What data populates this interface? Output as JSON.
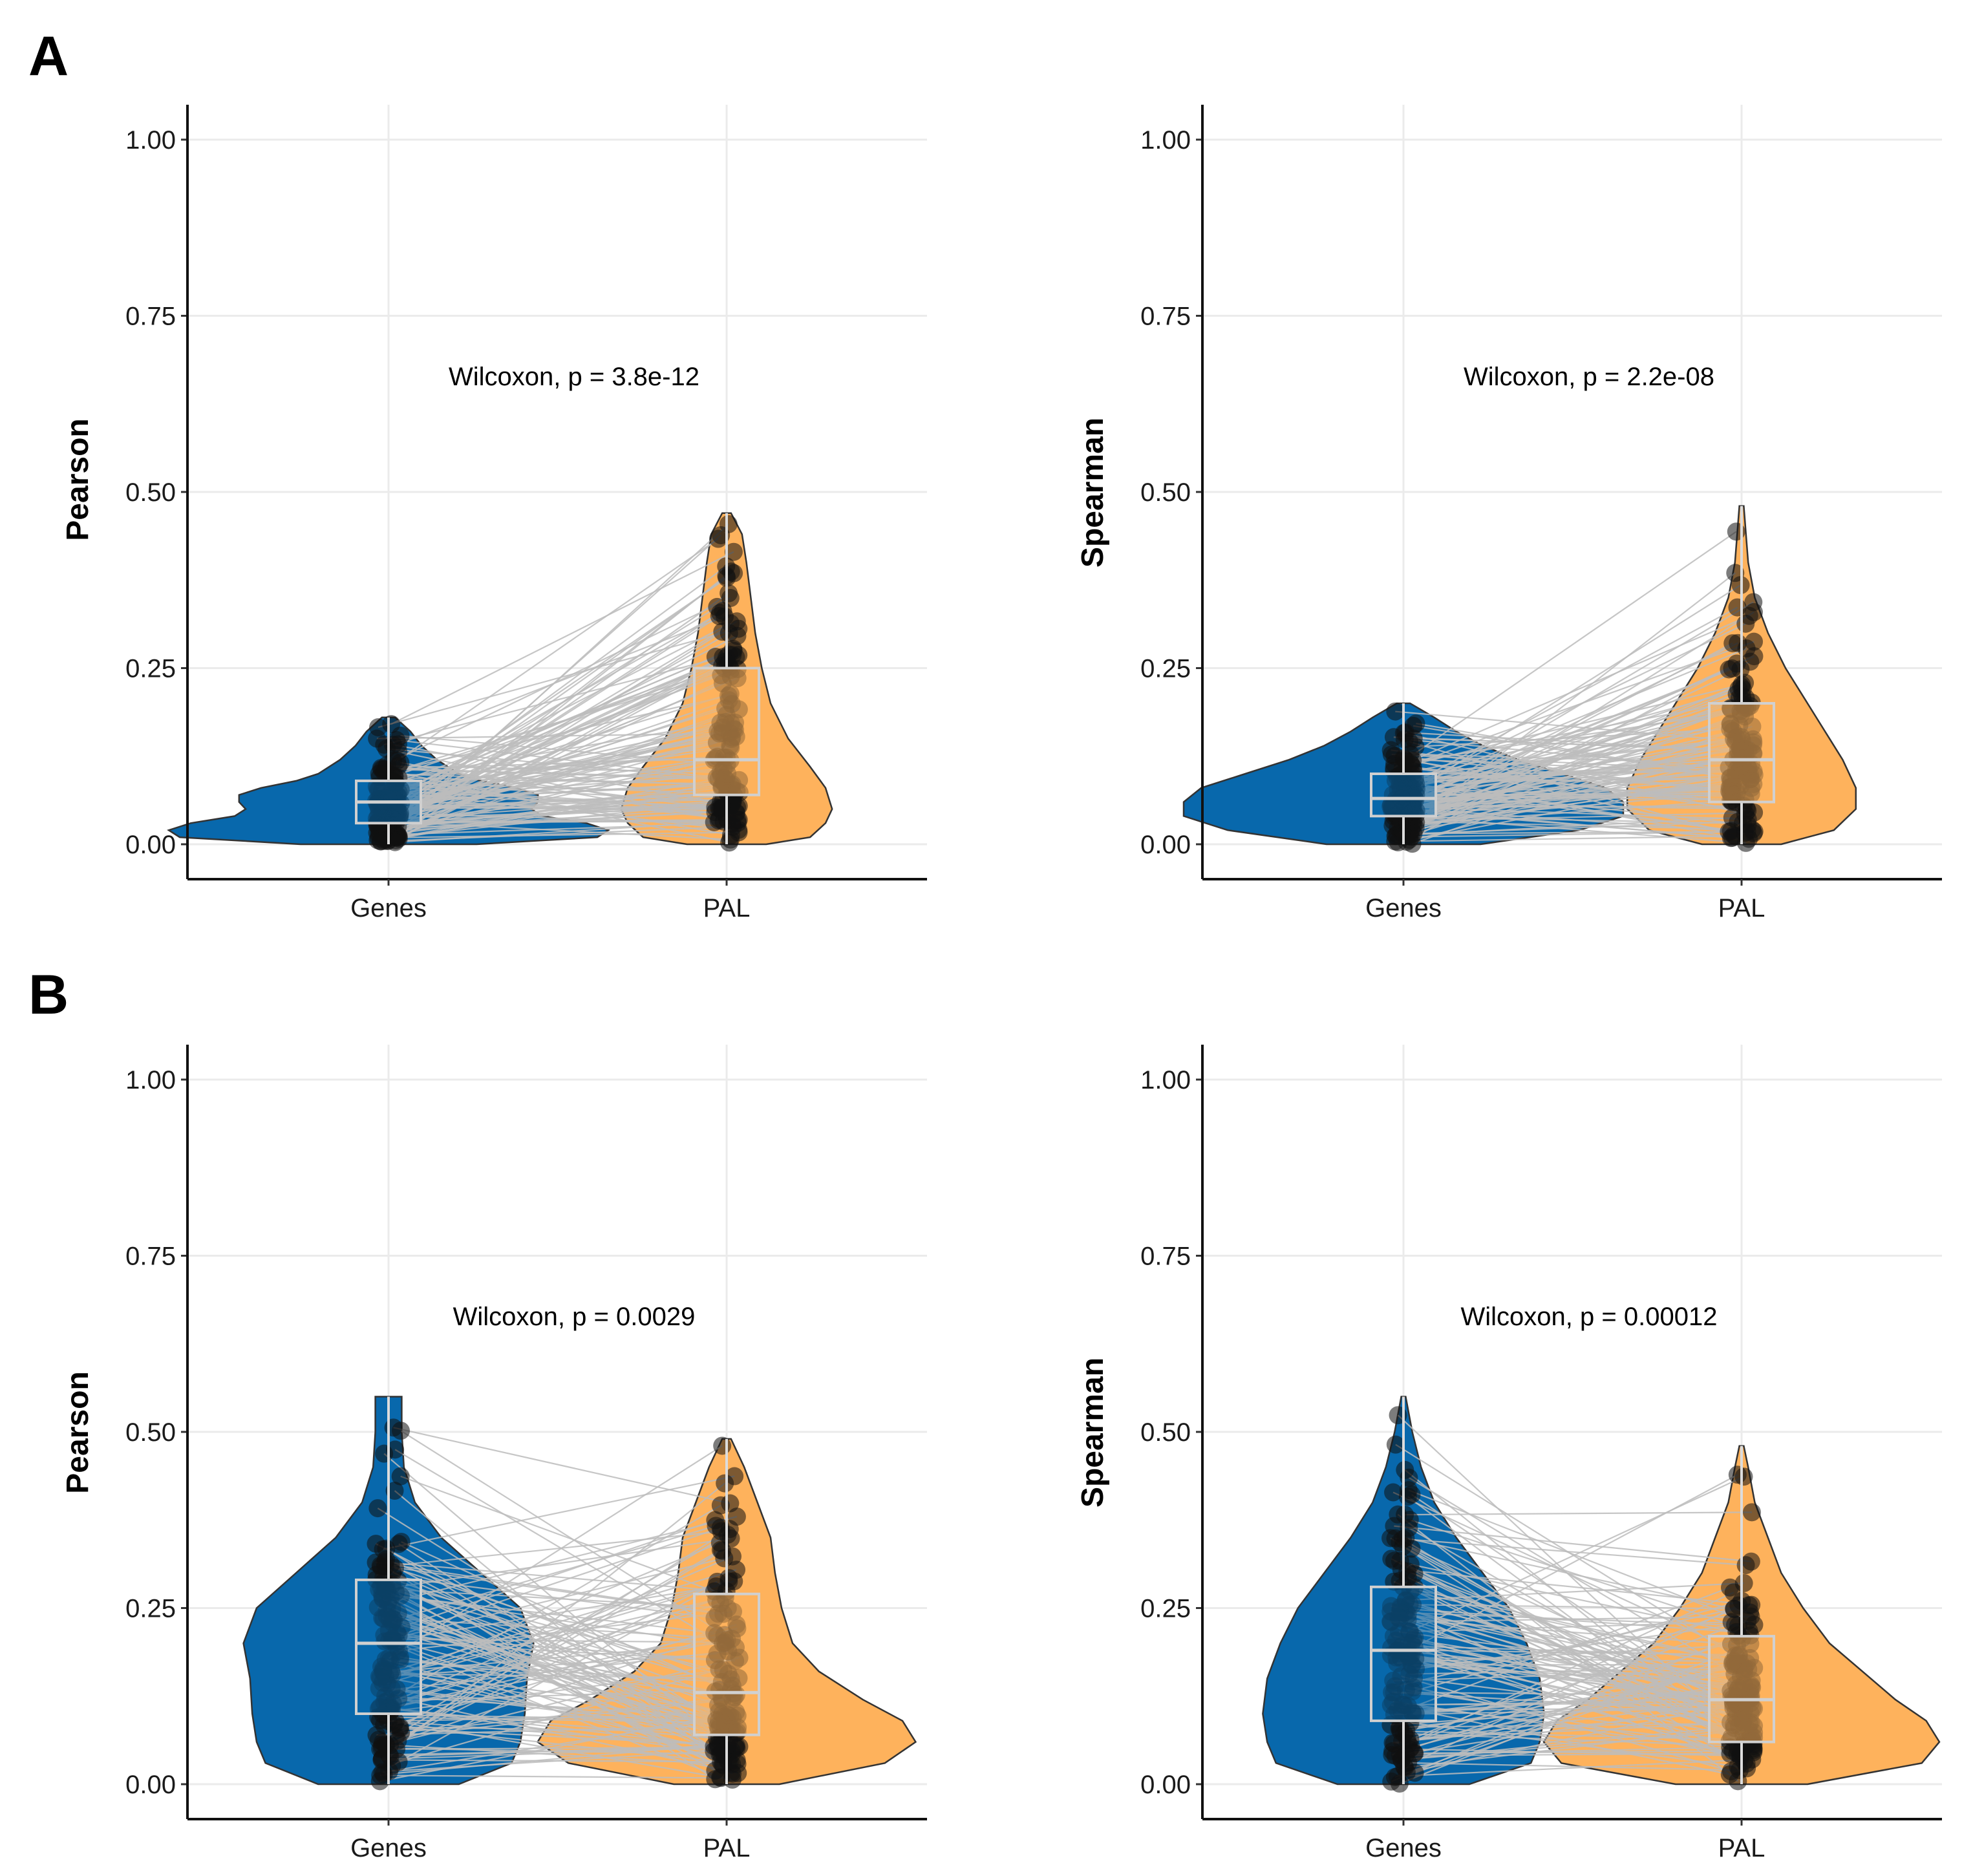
{
  "panel_letters": [
    "A",
    "B"
  ],
  "chart_data": [
    {
      "type": "violin",
      "panel": "A",
      "ylabel": "Pearson",
      "annotation": "Wilcoxon, p = 3.8e-12",
      "categories": [
        "Genes",
        "PAL"
      ],
      "yticks": [
        "0.00",
        "0.25",
        "0.50",
        "0.75",
        "1.00"
      ],
      "ylim": [
        -0.05,
        1.05
      ],
      "grid": true,
      "colors": {
        "Genes": "#0868ac",
        "PAL": "#feb25c"
      },
      "boxes": [
        {
          "category": "Genes",
          "q1": 0.03,
          "median": 0.06,
          "q3": 0.09,
          "min": 0.0,
          "max": 0.18
        },
        {
          "category": "PAL",
          "q1": 0.07,
          "median": 0.12,
          "q3": 0.25,
          "min": 0.0,
          "max": 0.47
        }
      ],
      "violins": [
        {
          "category": "Genes",
          "profile": [
            [
              0,
              0.4
            ],
            [
              0.01,
              0.95
            ],
            [
              0.02,
              1.0
            ],
            [
              0.03,
              0.9
            ],
            [
              0.04,
              0.7
            ],
            [
              0.05,
              0.65
            ],
            [
              0.06,
              0.68
            ],
            [
              0.07,
              0.68
            ],
            [
              0.08,
              0.58
            ],
            [
              0.09,
              0.42
            ],
            [
              0.1,
              0.32
            ],
            [
              0.12,
              0.22
            ],
            [
              0.14,
              0.15
            ],
            [
              0.16,
              0.1
            ],
            [
              0.18,
              0.03
            ]
          ]
        },
        {
          "category": "PAL",
          "profile": [
            [
              0,
              0.18
            ],
            [
              0.01,
              0.38
            ],
            [
              0.03,
              0.45
            ],
            [
              0.05,
              0.48
            ],
            [
              0.08,
              0.45
            ],
            [
              0.11,
              0.38
            ],
            [
              0.15,
              0.28
            ],
            [
              0.2,
              0.2
            ],
            [
              0.25,
              0.16
            ],
            [
              0.3,
              0.13
            ],
            [
              0.35,
              0.11
            ],
            [
              0.4,
              0.09
            ],
            [
              0.44,
              0.07
            ],
            [
              0.47,
              0.02
            ]
          ]
        }
      ],
      "paired_n": 130
    },
    {
      "type": "violin",
      "panel": "A",
      "ylabel": "Spearman",
      "annotation": "Wilcoxon, p = 2.2e-08",
      "categories": [
        "Genes",
        "PAL"
      ],
      "yticks": [
        "0.00",
        "0.25",
        "0.50",
        "0.75",
        "1.00"
      ],
      "ylim": [
        -0.05,
        1.05
      ],
      "grid": true,
      "colors": {
        "Genes": "#0868ac",
        "PAL": "#feb25c"
      },
      "boxes": [
        {
          "category": "Genes",
          "q1": 0.04,
          "median": 0.065,
          "q3": 0.1,
          "min": 0.0,
          "max": 0.2
        },
        {
          "category": "PAL",
          "q1": 0.06,
          "median": 0.12,
          "q3": 0.2,
          "min": 0.0,
          "max": 0.48
        }
      ],
      "violins": [
        {
          "category": "Genes",
          "profile": [
            [
              0,
              0.35
            ],
            [
              0.02,
              0.8
            ],
            [
              0.04,
              1.0
            ],
            [
              0.06,
              1.0
            ],
            [
              0.08,
              0.92
            ],
            [
              0.1,
              0.72
            ],
            [
              0.12,
              0.52
            ],
            [
              0.14,
              0.36
            ],
            [
              0.16,
              0.24
            ],
            [
              0.18,
              0.14
            ],
            [
              0.2,
              0.03
            ]
          ]
        },
        {
          "category": "PAL",
          "profile": [
            [
              0,
              0.18
            ],
            [
              0.02,
              0.42
            ],
            [
              0.05,
              0.52
            ],
            [
              0.08,
              0.52
            ],
            [
              0.12,
              0.46
            ],
            [
              0.16,
              0.38
            ],
            [
              0.2,
              0.3
            ],
            [
              0.25,
              0.2
            ],
            [
              0.3,
              0.12
            ],
            [
              0.35,
              0.06
            ],
            [
              0.4,
              0.03
            ],
            [
              0.48,
              0.01
            ]
          ]
        }
      ],
      "paired_n": 130
    },
    {
      "type": "violin",
      "panel": "B",
      "ylabel": "Pearson",
      "annotation": "Wilcoxon, p = 0.0029",
      "categories": [
        "Genes",
        "PAL"
      ],
      "yticks": [
        "0.00",
        "0.25",
        "0.50",
        "0.75",
        "1.00"
      ],
      "ylim": [
        -0.05,
        1.05
      ],
      "grid": true,
      "colors": {
        "Genes": "#0868ac",
        "PAL": "#feb25c"
      },
      "boxes": [
        {
          "category": "Genes",
          "q1": 0.1,
          "median": 0.2,
          "q3": 0.29,
          "min": 0.0,
          "max": 0.55
        },
        {
          "category": "PAL",
          "q1": 0.07,
          "median": 0.13,
          "q3": 0.27,
          "min": 0.0,
          "max": 0.49
        }
      ],
      "violins": [
        {
          "category": "Genes",
          "profile": [
            [
              0,
              0.32
            ],
            [
              0.03,
              0.56
            ],
            [
              0.06,
              0.6
            ],
            [
              0.1,
              0.62
            ],
            [
              0.15,
              0.63
            ],
            [
              0.2,
              0.66
            ],
            [
              0.25,
              0.6
            ],
            [
              0.3,
              0.42
            ],
            [
              0.35,
              0.24
            ],
            [
              0.4,
              0.12
            ],
            [
              0.45,
              0.07
            ],
            [
              0.5,
              0.06
            ],
            [
              0.55,
              0.06
            ]
          ]
        },
        {
          "category": "PAL",
          "profile": [
            [
              0,
              0.24
            ],
            [
              0.03,
              0.72
            ],
            [
              0.06,
              0.86
            ],
            [
              0.09,
              0.8
            ],
            [
              0.12,
              0.62
            ],
            [
              0.16,
              0.42
            ],
            [
              0.2,
              0.3
            ],
            [
              0.25,
              0.25
            ],
            [
              0.3,
              0.22
            ],
            [
              0.35,
              0.2
            ],
            [
              0.4,
              0.14
            ],
            [
              0.45,
              0.08
            ],
            [
              0.49,
              0.02
            ]
          ]
        }
      ],
      "paired_n": 130
    },
    {
      "type": "violin",
      "panel": "B",
      "ylabel": "Spearman",
      "annotation": "Wilcoxon, p = 0.00012",
      "categories": [
        "Genes",
        "PAL"
      ],
      "yticks": [
        "0.00",
        "0.25",
        "0.50",
        "0.75",
        "1.00"
      ],
      "ylim": [
        -0.05,
        1.05
      ],
      "grid": true,
      "colors": {
        "Genes": "#0868ac",
        "PAL": "#feb25c"
      },
      "boxes": [
        {
          "category": "Genes",
          "q1": 0.09,
          "median": 0.19,
          "q3": 0.28,
          "min": 0.0,
          "max": 0.55
        },
        {
          "category": "PAL",
          "q1": 0.06,
          "median": 0.12,
          "q3": 0.21,
          "min": 0.0,
          "max": 0.48
        }
      ],
      "violins": [
        {
          "category": "Genes",
          "profile": [
            [
              0,
              0.3
            ],
            [
              0.03,
              0.58
            ],
            [
              0.06,
              0.62
            ],
            [
              0.1,
              0.64
            ],
            [
              0.15,
              0.62
            ],
            [
              0.2,
              0.56
            ],
            [
              0.25,
              0.48
            ],
            [
              0.3,
              0.36
            ],
            [
              0.35,
              0.24
            ],
            [
              0.4,
              0.14
            ],
            [
              0.45,
              0.08
            ],
            [
              0.5,
              0.04
            ],
            [
              0.55,
              0.01
            ]
          ]
        },
        {
          "category": "PAL",
          "profile": [
            [
              0,
              0.3
            ],
            [
              0.03,
              0.82
            ],
            [
              0.06,
              0.9
            ],
            [
              0.09,
              0.84
            ],
            [
              0.12,
              0.7
            ],
            [
              0.16,
              0.55
            ],
            [
              0.2,
              0.4
            ],
            [
              0.25,
              0.28
            ],
            [
              0.3,
              0.18
            ],
            [
              0.35,
              0.12
            ],
            [
              0.4,
              0.06
            ],
            [
              0.45,
              0.03
            ],
            [
              0.48,
              0.01
            ]
          ]
        }
      ],
      "paired_n": 130
    }
  ]
}
